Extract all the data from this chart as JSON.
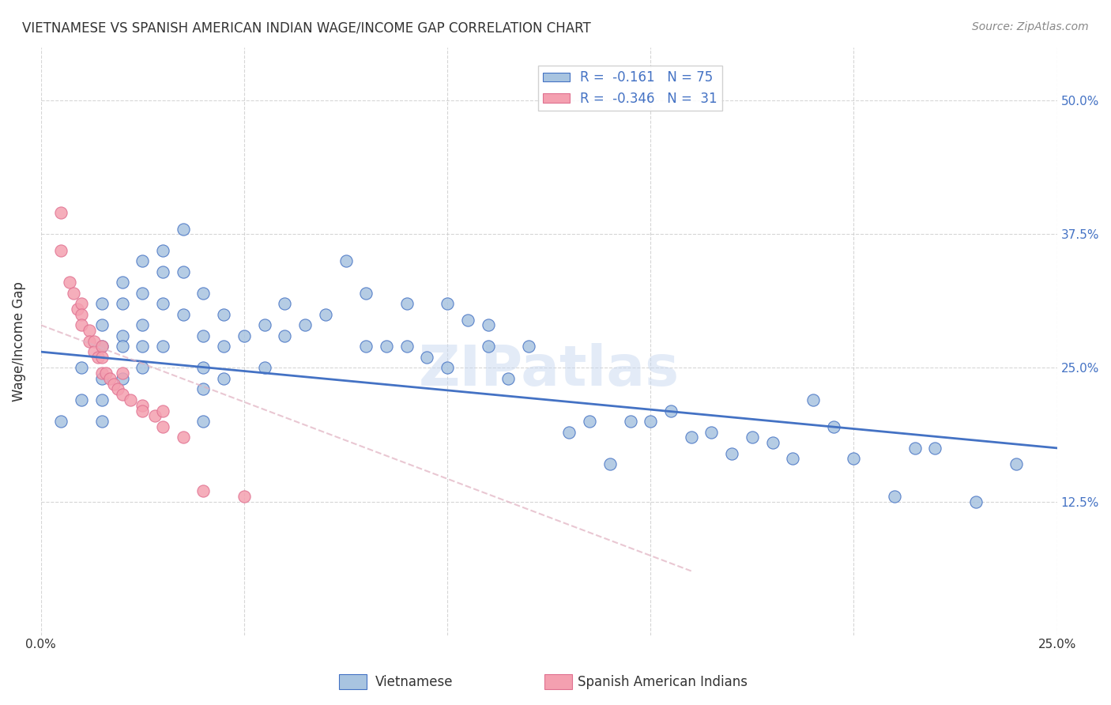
{
  "title": "VIETNAMESE VS SPANISH AMERICAN INDIAN WAGE/INCOME GAP CORRELATION CHART",
  "source": "Source: ZipAtlas.com",
  "ylabel": "Wage/Income Gap",
  "ytick_labels": [
    "12.5%",
    "25.0%",
    "37.5%",
    "50.0%"
  ],
  "ytick_values": [
    0.125,
    0.25,
    0.375,
    0.5
  ],
  "xlim": [
    0.0,
    0.25
  ],
  "ylim": [
    0.0,
    0.55
  ],
  "color_vietnamese": "#a8c4e0",
  "color_spanish": "#f4a0b0",
  "color_trendline_viet": "#4472c4",
  "color_trendline_spanish": "#e0b0c0",
  "color_edge_spanish": "#e07090",
  "watermark": "ZIPatlas",
  "vietnamese_x": [
    0.005,
    0.01,
    0.01,
    0.015,
    0.015,
    0.015,
    0.015,
    0.015,
    0.015,
    0.02,
    0.02,
    0.02,
    0.02,
    0.02,
    0.025,
    0.025,
    0.025,
    0.025,
    0.025,
    0.03,
    0.03,
    0.03,
    0.03,
    0.035,
    0.035,
    0.035,
    0.04,
    0.04,
    0.04,
    0.04,
    0.04,
    0.045,
    0.045,
    0.045,
    0.05,
    0.055,
    0.055,
    0.06,
    0.06,
    0.065,
    0.07,
    0.075,
    0.08,
    0.08,
    0.085,
    0.09,
    0.09,
    0.095,
    0.1,
    0.1,
    0.105,
    0.11,
    0.11,
    0.115,
    0.12,
    0.13,
    0.135,
    0.14,
    0.145,
    0.15,
    0.155,
    0.16,
    0.165,
    0.17,
    0.175,
    0.18,
    0.185,
    0.19,
    0.195,
    0.2,
    0.21,
    0.215,
    0.22,
    0.23,
    0.24
  ],
  "vietnamese_y": [
    0.2,
    0.25,
    0.22,
    0.31,
    0.29,
    0.27,
    0.24,
    0.22,
    0.2,
    0.33,
    0.31,
    0.28,
    0.27,
    0.24,
    0.35,
    0.32,
    0.29,
    0.27,
    0.25,
    0.36,
    0.34,
    0.31,
    0.27,
    0.38,
    0.34,
    0.3,
    0.32,
    0.28,
    0.25,
    0.23,
    0.2,
    0.3,
    0.27,
    0.24,
    0.28,
    0.29,
    0.25,
    0.31,
    0.28,
    0.29,
    0.3,
    0.35,
    0.32,
    0.27,
    0.27,
    0.31,
    0.27,
    0.26,
    0.31,
    0.25,
    0.295,
    0.29,
    0.27,
    0.24,
    0.27,
    0.19,
    0.2,
    0.16,
    0.2,
    0.2,
    0.21,
    0.185,
    0.19,
    0.17,
    0.185,
    0.18,
    0.165,
    0.22,
    0.195,
    0.165,
    0.13,
    0.175,
    0.175,
    0.125,
    0.16
  ],
  "spanish_x": [
    0.005,
    0.005,
    0.007,
    0.008,
    0.009,
    0.01,
    0.01,
    0.01,
    0.012,
    0.012,
    0.013,
    0.013,
    0.014,
    0.015,
    0.015,
    0.015,
    0.016,
    0.017,
    0.018,
    0.019,
    0.02,
    0.02,
    0.022,
    0.025,
    0.025,
    0.028,
    0.03,
    0.03,
    0.035,
    0.04,
    0.05
  ],
  "spanish_y": [
    0.395,
    0.36,
    0.33,
    0.32,
    0.305,
    0.31,
    0.3,
    0.29,
    0.285,
    0.275,
    0.275,
    0.265,
    0.26,
    0.27,
    0.26,
    0.245,
    0.245,
    0.24,
    0.235,
    0.23,
    0.245,
    0.225,
    0.22,
    0.215,
    0.21,
    0.205,
    0.21,
    0.195,
    0.185,
    0.135,
    0.13
  ],
  "viet_trendline_x": [
    0.0,
    0.25
  ],
  "viet_trendline_y": [
    0.265,
    0.175
  ],
  "spanish_trendline_x": [
    0.0,
    0.16
  ],
  "spanish_trendline_y": [
    0.29,
    0.06
  ],
  "legend_label1": "R =  -0.161   N = 75",
  "legend_label2": "R =  -0.346   N =  31",
  "bottom_label1": "Vietnamese",
  "bottom_label2": "Spanish American Indians"
}
